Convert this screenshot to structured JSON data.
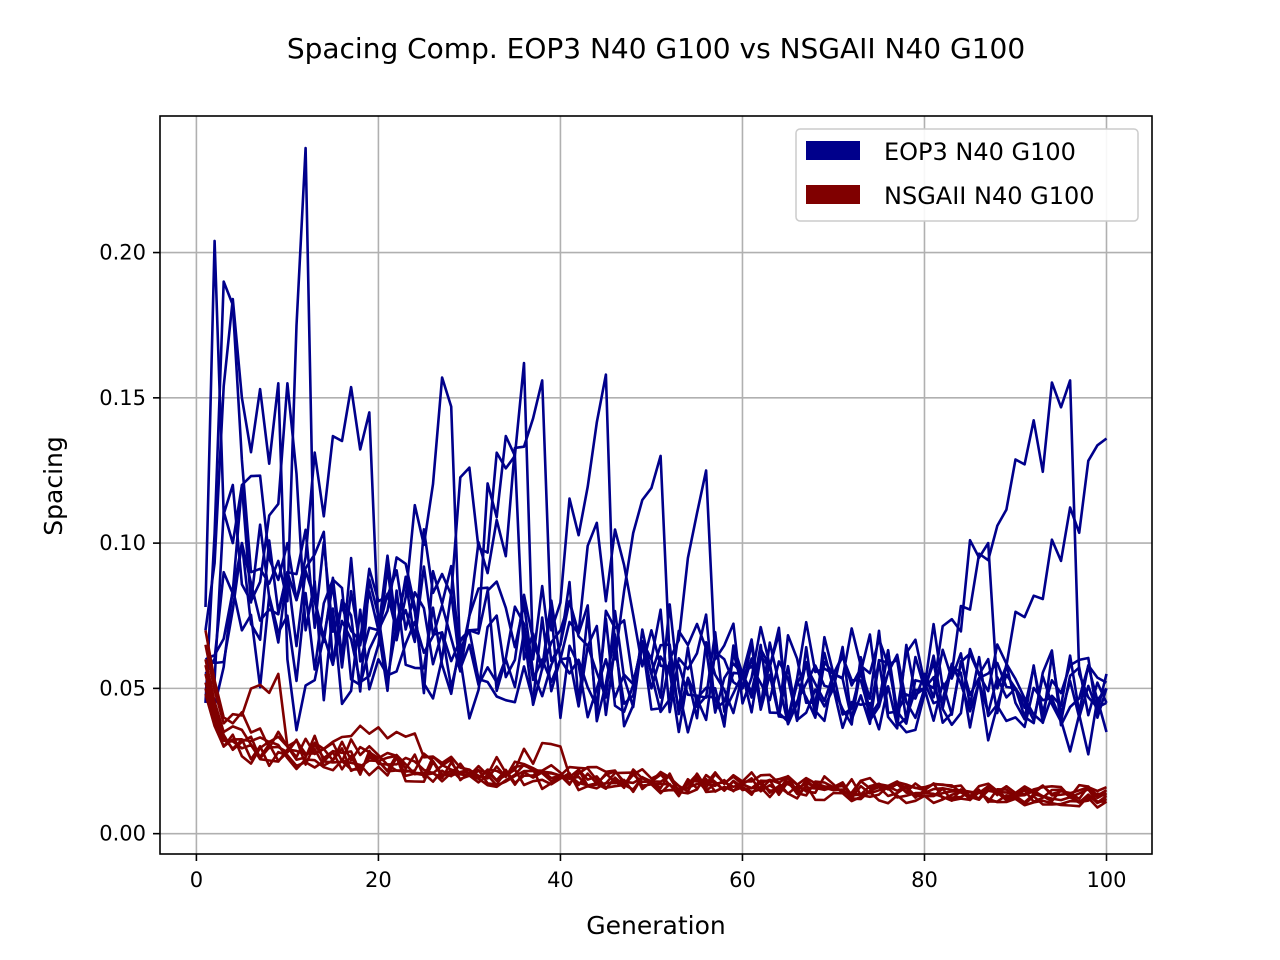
{
  "chart_data": {
    "type": "line",
    "title": "Spacing Comp. EOP3 N40 G100 vs NSGAII N40 G100",
    "xlabel": "Generation",
    "ylabel": "Spacing",
    "xlim": [
      -4,
      105
    ],
    "ylim": [
      -0.007,
      0.247
    ],
    "xticks": [
      0,
      20,
      40,
      60,
      80,
      100
    ],
    "xtick_labels": [
      "0",
      "20",
      "40",
      "60",
      "80",
      "100"
    ],
    "yticks": [
      0.0,
      0.05,
      0.1,
      0.15,
      0.2
    ],
    "ytick_labels": [
      "0.00",
      "0.05",
      "0.10",
      "0.15",
      "0.20"
    ],
    "grid": true,
    "legend_position": "top-right",
    "legend": [
      {
        "label": "EOP3 N40 G100",
        "color": "#00008b"
      },
      {
        "label": "NSGAII N40 G100",
        "color": "#800000"
      }
    ],
    "x_range": [
      1,
      100
    ],
    "groups": [
      {
        "name": "EOP3 N40 G100",
        "color": "#00008b",
        "runs": [
          {
            "anchors": [
              [
                1,
                0.078
              ],
              [
                2,
                0.204
              ],
              [
                3,
                0.11
              ],
              [
                4,
                0.12
              ],
              [
                6,
                0.08
              ],
              [
                10,
                0.155
              ],
              [
                12,
                0.07
              ],
              [
                20,
                0.06
              ],
              [
                30,
                0.075
              ],
              [
                40,
                0.06
              ],
              [
                50,
                0.055
              ],
              [
                60,
                0.055
              ],
              [
                70,
                0.055
              ],
              [
                80,
                0.052
              ],
              [
                90,
                0.05
              ],
              [
                100,
                0.05
              ]
            ],
            "amp": 0.028,
            "seed": 11
          },
          {
            "anchors": [
              [
                1,
                0.045
              ],
              [
                3,
                0.19
              ],
              [
                4,
                0.182
              ],
              [
                6,
                0.09
              ],
              [
                10,
                0.08
              ],
              [
                12,
                0.236
              ],
              [
                13,
                0.08
              ],
              [
                20,
                0.07
              ],
              [
                30,
                0.07
              ],
              [
                40,
                0.065
              ],
              [
                50,
                0.06
              ],
              [
                60,
                0.055
              ],
              [
                70,
                0.055
              ],
              [
                80,
                0.05
              ],
              [
                96,
                0.156
              ],
              [
                97,
                0.055
              ],
              [
                100,
                0.045
              ]
            ],
            "amp": 0.028,
            "seed": 23
          },
          {
            "anchors": [
              [
                1,
                0.07
              ],
              [
                4,
                0.184
              ],
              [
                5,
                0.15
              ],
              [
                7,
                0.153
              ],
              [
                9,
                0.155
              ],
              [
                10,
                0.06
              ],
              [
                20,
                0.075
              ],
              [
                30,
                0.07
              ],
              [
                36,
                0.162
              ],
              [
                37,
                0.06
              ],
              [
                40,
                0.065
              ],
              [
                50,
                0.06
              ],
              [
                60,
                0.05
              ],
              [
                70,
                0.05
              ],
              [
                80,
                0.05
              ],
              [
                90,
                0.045
              ],
              [
                100,
                0.055
              ]
            ],
            "amp": 0.03,
            "seed": 37
          },
          {
            "anchors": [
              [
                1,
                0.05
              ],
              [
                4,
                0.1
              ],
              [
                10,
                0.09
              ],
              [
                19,
                0.145
              ],
              [
                20,
                0.07
              ],
              [
                30,
                0.075
              ],
              [
                38,
                0.156
              ],
              [
                39,
                0.07
              ],
              [
                45,
                0.158
              ],
              [
                46,
                0.06
              ],
              [
                51,
                0.13
              ],
              [
                52,
                0.06
              ],
              [
                56,
                0.125
              ],
              [
                57,
                0.06
              ],
              [
                70,
                0.055
              ],
              [
                80,
                0.05
              ],
              [
                100,
                0.052
              ]
            ],
            "amp": 0.028,
            "seed": 41
          },
          {
            "anchors": [
              [
                1,
                0.06
              ],
              [
                5,
                0.12
              ],
              [
                10,
                0.1
              ],
              [
                20,
                0.065
              ],
              [
                28,
                0.147
              ],
              [
                29,
                0.06
              ],
              [
                40,
                0.07
              ],
              [
                44,
                0.107
              ],
              [
                50,
                0.07
              ],
              [
                60,
                0.055
              ],
              [
                70,
                0.055
              ],
              [
                80,
                0.052
              ],
              [
                87,
                0.1
              ],
              [
                88,
                0.05
              ],
              [
                100,
                0.136
              ]
            ],
            "amp": 0.028,
            "seed": 53
          },
          {
            "anchors": [
              [
                1,
                0.055
              ],
              [
                3,
                0.09
              ],
              [
                10,
                0.09
              ],
              [
                20,
                0.07
              ],
              [
                35,
                0.13
              ],
              [
                36,
                0.06
              ],
              [
                45,
                0.06
              ],
              [
                60,
                0.055
              ],
              [
                70,
                0.05
              ],
              [
                80,
                0.048
              ],
              [
                90,
                0.04
              ],
              [
                100,
                0.035
              ]
            ],
            "amp": 0.026,
            "seed": 67
          },
          {
            "anchors": [
              [
                1,
                0.05
              ],
              [
                5,
                0.07
              ],
              [
                10,
                0.075
              ],
              [
                20,
                0.07
              ],
              [
                30,
                0.065
              ],
              [
                40,
                0.06
              ],
              [
                50,
                0.055
              ],
              [
                60,
                0.055
              ],
              [
                70,
                0.05
              ],
              [
                80,
                0.05
              ],
              [
                90,
                0.05
              ],
              [
                100,
                0.045
              ]
            ],
            "amp": 0.024,
            "seed": 79
          },
          {
            "anchors": [
              [
                1,
                0.06
              ],
              [
                5,
                0.1
              ],
              [
                10,
                0.09
              ],
              [
                20,
                0.08
              ],
              [
                30,
                0.07
              ],
              [
                40,
                0.06
              ],
              [
                50,
                0.05
              ],
              [
                60,
                0.05
              ],
              [
                70,
                0.055
              ],
              [
                80,
                0.055
              ],
              [
                90,
                0.05
              ],
              [
                100,
                0.05
              ]
            ],
            "amp": 0.025,
            "seed": 97
          }
        ]
      },
      {
        "name": "NSGAII N40 G100",
        "color": "#800000",
        "runs": [
          {
            "anchors": [
              [
                1,
                0.07
              ],
              [
                3,
                0.04
              ],
              [
                10,
                0.03
              ],
              [
                20,
                0.025
              ],
              [
                30,
                0.02
              ],
              [
                40,
                0.02
              ],
              [
                50,
                0.018
              ],
              [
                60,
                0.018
              ],
              [
                70,
                0.016
              ],
              [
                80,
                0.015
              ],
              [
                90,
                0.013
              ],
              [
                100,
                0.013
              ]
            ],
            "amp": 0.005,
            "seed": 101
          },
          {
            "anchors": [
              [
                1,
                0.065
              ],
              [
                3,
                0.038
              ],
              [
                9,
                0.055
              ],
              [
                10,
                0.03
              ],
              [
                20,
                0.027
              ],
              [
                30,
                0.022
              ],
              [
                40,
                0.02
              ],
              [
                50,
                0.018
              ],
              [
                60,
                0.017
              ],
              [
                70,
                0.016
              ],
              [
                80,
                0.015
              ],
              [
                90,
                0.014
              ],
              [
                100,
                0.014
              ]
            ],
            "amp": 0.005,
            "seed": 113
          },
          {
            "anchors": [
              [
                1,
                0.06
              ],
              [
                3,
                0.035
              ],
              [
                10,
                0.028
              ],
              [
                20,
                0.025
              ],
              [
                30,
                0.02
              ],
              [
                40,
                0.02
              ],
              [
                50,
                0.018
              ],
              [
                60,
                0.017
              ],
              [
                70,
                0.016
              ],
              [
                80,
                0.014
              ],
              [
                90,
                0.013
              ],
              [
                100,
                0.012
              ]
            ],
            "amp": 0.005,
            "seed": 127
          },
          {
            "anchors": [
              [
                1,
                0.055
              ],
              [
                3,
                0.033
              ],
              [
                10,
                0.03
              ],
              [
                22,
                0.035
              ],
              [
                30,
                0.022
              ],
              [
                40,
                0.021
              ],
              [
                50,
                0.019
              ],
              [
                60,
                0.018
              ],
              [
                70,
                0.017
              ],
              [
                80,
                0.015
              ],
              [
                90,
                0.014
              ],
              [
                100,
                0.015
              ]
            ],
            "amp": 0.005,
            "seed": 131
          },
          {
            "anchors": [
              [
                1,
                0.05
              ],
              [
                3,
                0.03
              ],
              [
                10,
                0.027
              ],
              [
                20,
                0.024
              ],
              [
                30,
                0.02
              ],
              [
                40,
                0.03
              ],
              [
                41,
                0.02
              ],
              [
                50,
                0.018
              ],
              [
                60,
                0.016
              ],
              [
                70,
                0.015
              ],
              [
                80,
                0.013
              ],
              [
                90,
                0.012
              ],
              [
                100,
                0.011
              ]
            ],
            "amp": 0.005,
            "seed": 149
          },
          {
            "anchors": [
              [
                1,
                0.052
              ],
              [
                3,
                0.032
              ],
              [
                10,
                0.029
              ],
              [
                20,
                0.026
              ],
              [
                30,
                0.021
              ],
              [
                40,
                0.02
              ],
              [
                50,
                0.018
              ],
              [
                60,
                0.017
              ],
              [
                70,
                0.016
              ],
              [
                80,
                0.016
              ],
              [
                90,
                0.014
              ],
              [
                100,
                0.016
              ]
            ],
            "amp": 0.005,
            "seed": 157
          },
          {
            "anchors": [
              [
                1,
                0.058
              ],
              [
                3,
                0.034
              ],
              [
                10,
                0.028
              ],
              [
                20,
                0.025
              ],
              [
                30,
                0.021
              ],
              [
                40,
                0.019
              ],
              [
                50,
                0.017
              ],
              [
                60,
                0.016
              ],
              [
                70,
                0.015
              ],
              [
                80,
                0.014
              ],
              [
                90,
                0.013
              ],
              [
                100,
                0.013
              ]
            ],
            "amp": 0.005,
            "seed": 163
          },
          {
            "anchors": [
              [
                1,
                0.048
              ],
              [
                3,
                0.03
              ],
              [
                10,
                0.026
              ],
              [
                20,
                0.023
              ],
              [
                30,
                0.02
              ],
              [
                40,
                0.019
              ],
              [
                50,
                0.017
              ],
              [
                60,
                0.015
              ],
              [
                70,
                0.014
              ],
              [
                80,
                0.013
              ],
              [
                90,
                0.012
              ],
              [
                100,
                0.011
              ]
            ],
            "amp": 0.005,
            "seed": 173
          }
        ]
      }
    ]
  }
}
